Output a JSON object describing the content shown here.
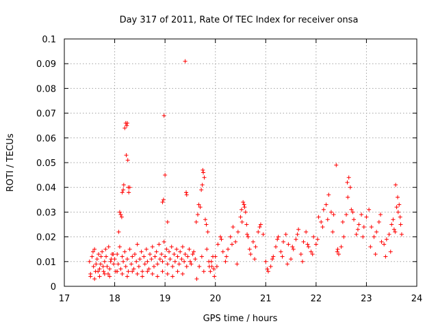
{
  "chart_data": {
    "type": "scatter",
    "title": "Day 317 of 2011, Rate Of TEC Index for receiver onsa",
    "xlabel": "GPS time / hours",
    "ylabel": "ROTI / TECUs",
    "xlim": [
      17,
      24
    ],
    "ylim": [
      0,
      0.1
    ],
    "x_ticks": [
      "17",
      "18",
      "19",
      "20",
      "21",
      "22",
      "23",
      "24"
    ],
    "y_ticks": [
      "0",
      "0.01",
      "0.02",
      "0.03",
      "0.04",
      "0.05",
      "0.06",
      "0.07",
      "0.08",
      "0.09",
      "0.1"
    ],
    "x_tick_values": [
      17,
      18,
      19,
      20,
      21,
      22,
      23,
      24
    ],
    "y_tick_values": [
      0,
      0.01,
      0.02,
      0.03,
      0.04,
      0.05,
      0.06,
      0.07,
      0.08,
      0.09,
      0.1
    ],
    "grid": true,
    "marker": "+",
    "color": "#ff0000",
    "series": [
      {
        "x": [
          17.5,
          17.52,
          17.55,
          17.58,
          17.6,
          17.62,
          17.65,
          17.68,
          17.7,
          17.72,
          17.75,
          17.78,
          17.8,
          17.83,
          17.85,
          17.88,
          17.9,
          17.93,
          17.95,
          17.98,
          17.52,
          17.57,
          17.63,
          17.67,
          17.73,
          17.77,
          17.82,
          17.87,
          17.92,
          17.97,
          18.0,
          18.02,
          18.05,
          18.07,
          18.1,
          18.12,
          18.15,
          18.17,
          18.2,
          18.22,
          18.25,
          18.27,
          18.3,
          18.33,
          18.35,
          18.38,
          18.4,
          18.43,
          18.45,
          18.48,
          18.5,
          18.53,
          18.55,
          18.58,
          18.6,
          18.63,
          18.65,
          18.68,
          18.7,
          18.73,
          18.75,
          18.78,
          18.8,
          18.83,
          18.85,
          18.88,
          18.9,
          18.93,
          18.95,
          18.98,
          19.0,
          19.03,
          19.05,
          19.08,
          19.1,
          19.13,
          19.15,
          19.18,
          19.2,
          19.23,
          19.25,
          19.28,
          19.3,
          19.33,
          19.35,
          19.38,
          19.4,
          19.43,
          19.45,
          19.48,
          17.6,
          17.7,
          17.8,
          17.9,
          18.05,
          18.15,
          18.25,
          18.35,
          18.45,
          18.55,
          18.65,
          18.75,
          18.85,
          18.95,
          19.05,
          19.15,
          19.25,
          19.35,
          18.08,
          18.1,
          18.12,
          18.14,
          18.15,
          18.17,
          18.18,
          18.2,
          18.22,
          18.23,
          18.24,
          18.25,
          18.26,
          18.27,
          18.28,
          18.3,
          18.95,
          18.97,
          18.98,
          19.0,
          19.05,
          19.4,
          19.42,
          19.43,
          19.5,
          19.55,
          19.6,
          19.62,
          19.65,
          19.67,
          19.7,
          19.72,
          19.74,
          19.75,
          19.76,
          19.78,
          19.8,
          19.82,
          19.85,
          19.88,
          19.9,
          19.92,
          19.95,
          19.97,
          19.52,
          19.57,
          19.63,
          19.68,
          19.73,
          19.77,
          19.83,
          19.87,
          19.93,
          19.98,
          20.0,
          20.05,
          20.1,
          20.15,
          20.2,
          20.25,
          20.3,
          20.35,
          20.4,
          20.45,
          20.5,
          20.52,
          20.55,
          20.57,
          20.6,
          20.62,
          20.65,
          20.7,
          20.75,
          20.8,
          20.85,
          20.9,
          20.95,
          20.03,
          20.12,
          20.22,
          20.33,
          20.43,
          20.53,
          20.58,
          20.63,
          20.68,
          20.78,
          20.88,
          21.0,
          21.05,
          21.1,
          21.15,
          21.2,
          21.25,
          21.3,
          21.35,
          21.4,
          21.45,
          21.5,
          21.55,
          21.6,
          21.65,
          21.7,
          21.75,
          21.8,
          21.85,
          21.9,
          21.95,
          21.03,
          21.13,
          21.23,
          21.33,
          21.43,
          21.53,
          21.63,
          21.73,
          21.83,
          21.93,
          22.0,
          22.05,
          22.1,
          22.15,
          22.2,
          22.25,
          22.3,
          22.35,
          22.4,
          22.42,
          22.45,
          22.5,
          22.55,
          22.6,
          22.62,
          22.65,
          22.68,
          22.7,
          22.75,
          22.8,
          22.85,
          22.9,
          22.95,
          22.03,
          22.13,
          22.23,
          22.33,
          22.43,
          22.53,
          22.63,
          22.73,
          22.83,
          22.93,
          23.0,
          23.05,
          23.1,
          23.15,
          23.2,
          23.25,
          23.3,
          23.35,
          23.4,
          23.45,
          23.5,
          23.55,
          23.58,
          23.6,
          23.62,
          23.65,
          23.67,
          23.7,
          23.08,
          23.18,
          23.28,
          23.38,
          23.48,
          23.53,
          23.57,
          23.63,
          23.68
        ],
        "y": [
          0.01,
          0.005,
          0.012,
          0.008,
          0.015,
          0.006,
          0.011,
          0.013,
          0.007,
          0.009,
          0.014,
          0.006,
          0.01,
          0.012,
          0.008,
          0.016,
          0.007,
          0.011,
          0.013,
          0.009,
          0.004,
          0.014,
          0.009,
          0.006,
          0.012,
          0.008,
          0.015,
          0.005,
          0.01,
          0.013,
          0.011,
          0.006,
          0.013,
          0.009,
          0.016,
          0.007,
          0.012,
          0.01,
          0.014,
          0.008,
          0.011,
          0.006,
          0.015,
          0.009,
          0.012,
          0.007,
          0.013,
          0.01,
          0.017,
          0.008,
          0.011,
          0.014,
          0.006,
          0.012,
          0.009,
          0.015,
          0.01,
          0.007,
          0.013,
          0.011,
          0.016,
          0.008,
          0.012,
          0.014,
          0.009,
          0.017,
          0.011,
          0.013,
          0.01,
          0.018,
          0.012,
          0.015,
          0.009,
          0.014,
          0.011,
          0.016,
          0.008,
          0.013,
          0.01,
          0.015,
          0.012,
          0.009,
          0.014,
          0.011,
          0.016,
          0.01,
          0.013,
          0.008,
          0.012,
          0.015,
          0.003,
          0.004,
          0.005,
          0.004,
          0.006,
          0.005,
          0.004,
          0.006,
          0.005,
          0.004,
          0.006,
          0.005,
          0.004,
          0.006,
          0.005,
          0.004,
          0.006,
          0.005,
          0.022,
          0.03,
          0.029,
          0.028,
          0.038,
          0.039,
          0.041,
          0.064,
          0.066,
          0.053,
          0.065,
          0.066,
          0.051,
          0.04,
          0.038,
          0.04,
          0.034,
          0.035,
          0.069,
          0.045,
          0.026,
          0.091,
          0.038,
          0.037,
          0.01,
          0.013,
          0.011,
          0.026,
          0.029,
          0.033,
          0.032,
          0.039,
          0.041,
          0.047,
          0.046,
          0.044,
          0.027,
          0.025,
          0.022,
          0.008,
          0.006,
          0.01,
          0.012,
          0.007,
          0.009,
          0.014,
          0.003,
          0.008,
          0.012,
          0.006,
          0.015,
          0.01,
          0.008,
          0.004,
          0.012,
          0.017,
          0.02,
          0.014,
          0.01,
          0.015,
          0.02,
          0.024,
          0.018,
          0.022,
          0.028,
          0.031,
          0.034,
          0.033,
          0.03,
          0.025,
          0.02,
          0.013,
          0.018,
          0.016,
          0.022,
          0.025,
          0.021,
          0.008,
          0.019,
          0.012,
          0.017,
          0.009,
          0.026,
          0.032,
          0.021,
          0.015,
          0.011,
          0.024,
          0.01,
          0.006,
          0.008,
          0.012,
          0.016,
          0.02,
          0.014,
          0.018,
          0.021,
          0.017,
          0.011,
          0.015,
          0.019,
          0.023,
          0.013,
          0.018,
          0.022,
          0.016,
          0.014,
          0.02,
          0.007,
          0.011,
          0.019,
          0.012,
          0.009,
          0.016,
          0.021,
          0.01,
          0.017,
          0.013,
          0.017,
          0.028,
          0.026,
          0.031,
          0.033,
          0.037,
          0.03,
          0.029,
          0.049,
          0.014,
          0.013,
          0.016,
          0.02,
          0.029,
          0.042,
          0.044,
          0.04,
          0.031,
          0.027,
          0.021,
          0.025,
          0.029,
          0.024,
          0.019,
          0.024,
          0.027,
          0.022,
          0.015,
          0.026,
          0.036,
          0.03,
          0.023,
          0.02,
          0.028,
          0.031,
          0.024,
          0.02,
          0.022,
          0.026,
          0.018,
          0.017,
          0.019,
          0.021,
          0.025,
          0.023,
          0.041,
          0.032,
          0.036,
          0.033,
          0.028,
          0.021,
          0.016,
          0.013,
          0.029,
          0.012,
          0.014,
          0.027,
          0.022,
          0.03,
          0.025
        ]
      }
    ]
  }
}
